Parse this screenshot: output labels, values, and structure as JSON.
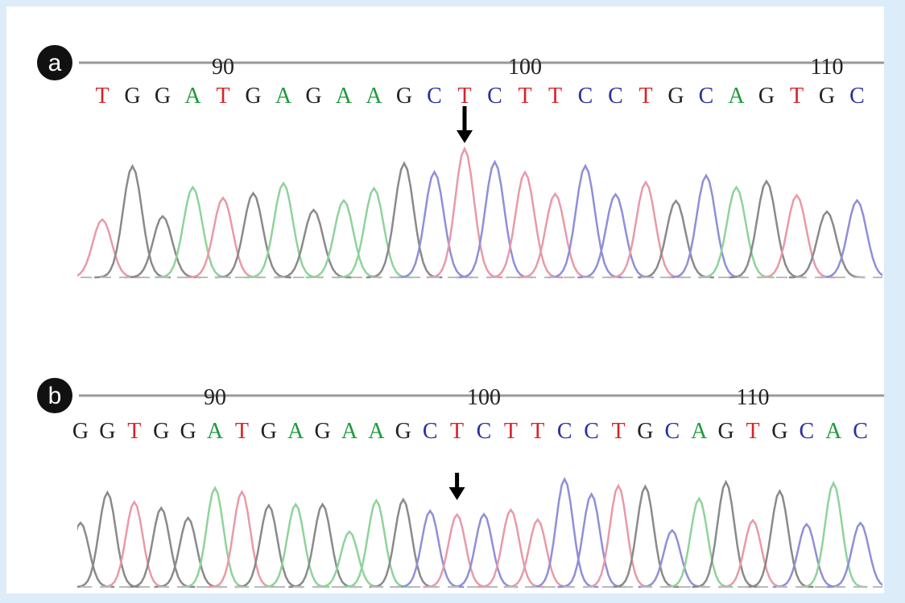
{
  "panels": [
    {
      "label": "a",
      "ticks": [
        90,
        100,
        110
      ],
      "bases": [
        "T",
        "G",
        "G",
        "A",
        "T",
        "G",
        "A",
        "G",
        "A",
        "A",
        "G",
        "C",
        "T",
        "C",
        "T",
        "T",
        "C",
        "C",
        "T",
        "G",
        "C",
        "A",
        "G",
        "T",
        "G",
        "C"
      ]
    },
    {
      "label": "b",
      "ticks": [
        90,
        100,
        110
      ],
      "bases": [
        "G",
        "G",
        "T",
        "G",
        "G",
        "A",
        "T",
        "G",
        "A",
        "G",
        "A",
        "A",
        "G",
        "C",
        "T",
        "C",
        "T",
        "T",
        "C",
        "C",
        "T",
        "G",
        "C",
        "A",
        "G",
        "T",
        "G",
        "C",
        "A",
        "C"
      ]
    }
  ],
  "base_colors": {
    "A": "#1f9a3c",
    "C": "#2b2fa0",
    "G": "#222222",
    "T": "#d8232a"
  },
  "trace_colors": {
    "A": "#8fd39a",
    "C": "#8f8fd8",
    "G": "#8a8a8a",
    "T": "#e89aa8"
  }
}
